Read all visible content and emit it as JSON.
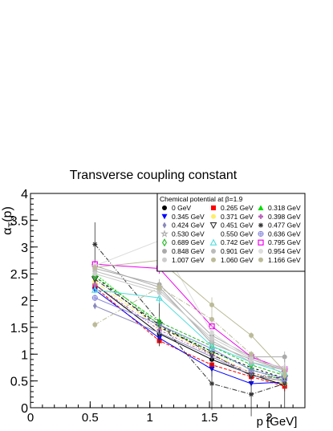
{
  "chart_data": {
    "type": "line",
    "title": "Transverse coupling constant",
    "xlabel": "p [GeV]",
    "ylabel": "α",
    "ylabel_sub": "T",
    "ylabel_suffix": "(p)",
    "xlim": [
      0,
      2.3
    ],
    "ylim": [
      0,
      4
    ],
    "xticks": [
      "0",
      "0.5",
      "1",
      "1.5",
      "2"
    ],
    "yticks": [
      "0",
      "0.5",
      "1",
      "1.5",
      "2",
      "2.5",
      "3",
      "3.5",
      "4"
    ],
    "legend_header": "Chemical potential at β=1.9",
    "legend_position": "top-right",
    "x": [
      0.54,
      1.08,
      1.52,
      1.85,
      2.13
    ],
    "series": [
      {
        "name": "0 GeV",
        "color": "#000000",
        "marker": "circle",
        "values": [
          2.3,
          1.38,
          0.9,
          0.62,
          0.42
        ]
      },
      {
        "name": "0.265 GeV",
        "color": "#ff0000",
        "marker": "square",
        "values": [
          2.25,
          1.25,
          0.8,
          0.58,
          0.4
        ]
      },
      {
        "name": "0.318 GeV",
        "color": "#00dd00",
        "marker": "triangle-up",
        "values": [
          2.5,
          1.55,
          1.05,
          0.72,
          0.5
        ]
      },
      {
        "name": "0.345 GeV",
        "color": "#0000ff",
        "marker": "triangle-down",
        "values": [
          2.2,
          1.3,
          0.72,
          0.45,
          0.48
        ]
      },
      {
        "name": "0.371 GeV",
        "color": "#ffee66",
        "marker": "circle",
        "values": [
          2.35,
          1.5,
          1.0,
          0.65,
          0.45
        ]
      },
      {
        "name": "0.398 GeV",
        "color": "#bb66bb",
        "marker": "plus-thick",
        "values": [
          2.3,
          1.45,
          0.98,
          0.65,
          0.52
        ]
      },
      {
        "name": "0.424 GeV",
        "color": "#8888bb",
        "marker": "diamond",
        "values": [
          1.9,
          1.4,
          0.95,
          0.6,
          0.5
        ]
      },
      {
        "name": "0.451 GeV",
        "color": "#333333",
        "marker": "triangle-down-open",
        "values": [
          2.4,
          1.55,
          1.0,
          0.6,
          0.55
        ]
      },
      {
        "name": "0.477 GeV",
        "color": "#333333",
        "marker": "star",
        "values": [
          3.05,
          1.6,
          0.45,
          0.25,
          0.45
        ]
      },
      {
        "name": "0.530 GeV",
        "color": "#aaaaaa",
        "marker": "star-open",
        "values": [
          2.65,
          2.25,
          1.2,
          0.9,
          0.7
        ]
      },
      {
        "name": "0.550 GeV",
        "color": "#000000",
        "marker": "none",
        "values": [
          2.45,
          1.5,
          1.05,
          0.75,
          0.55
        ]
      },
      {
        "name": "0.636 GeV",
        "color": "#8888dd",
        "marker": "circle-cross",
        "values": [
          2.05,
          1.55,
          1.1,
          0.7,
          0.55
        ]
      },
      {
        "name": "0.689 GeV",
        "color": "#22bb22",
        "marker": "diamond-open",
        "values": [
          2.45,
          1.6,
          1.15,
          0.8,
          0.6
        ]
      },
      {
        "name": "0.742 GeV",
        "color": "#55dddd",
        "marker": "triangle-up-open",
        "values": [
          2.2,
          2.05,
          1.15,
          0.85,
          0.65
        ]
      },
      {
        "name": "0.795 GeV",
        "color": "#ee00ee",
        "marker": "square-open",
        "values": [
          2.68,
          2.6,
          1.52,
          0.95,
          0.72
        ]
      },
      {
        "name": "0.848 GeV",
        "color": "#aaaaaa",
        "marker": "circle",
        "values": [
          2.6,
          2.3,
          1.35,
          0.95,
          0.95
        ]
      },
      {
        "name": "0.901 GeV",
        "color": "#bbbbbb",
        "marker": "circle",
        "values": [
          2.55,
          2.2,
          1.25,
          0.85,
          0.7
        ]
      },
      {
        "name": "0.954 GeV",
        "color": "#dddddd",
        "marker": "circle",
        "values": [
          2.65,
          3.12,
          1.4,
          0.9,
          0.75
        ]
      },
      {
        "name": "1.007 GeV",
        "color": "#cccccc",
        "marker": "circle",
        "values": [
          2.5,
          2.15,
          1.3,
          0.92,
          0.72
        ]
      },
      {
        "name": "1.060 GeV",
        "color": "#bbbb99",
        "marker": "circle",
        "values": [
          2.62,
          2.75,
          1.92,
          1.35,
          0.68
        ]
      },
      {
        "name": "1.166 GeV",
        "color": "#bbbb99",
        "marker": "circle",
        "values": [
          1.55,
          2.25,
          1.65,
          1.0,
          0.6
        ]
      }
    ]
  }
}
